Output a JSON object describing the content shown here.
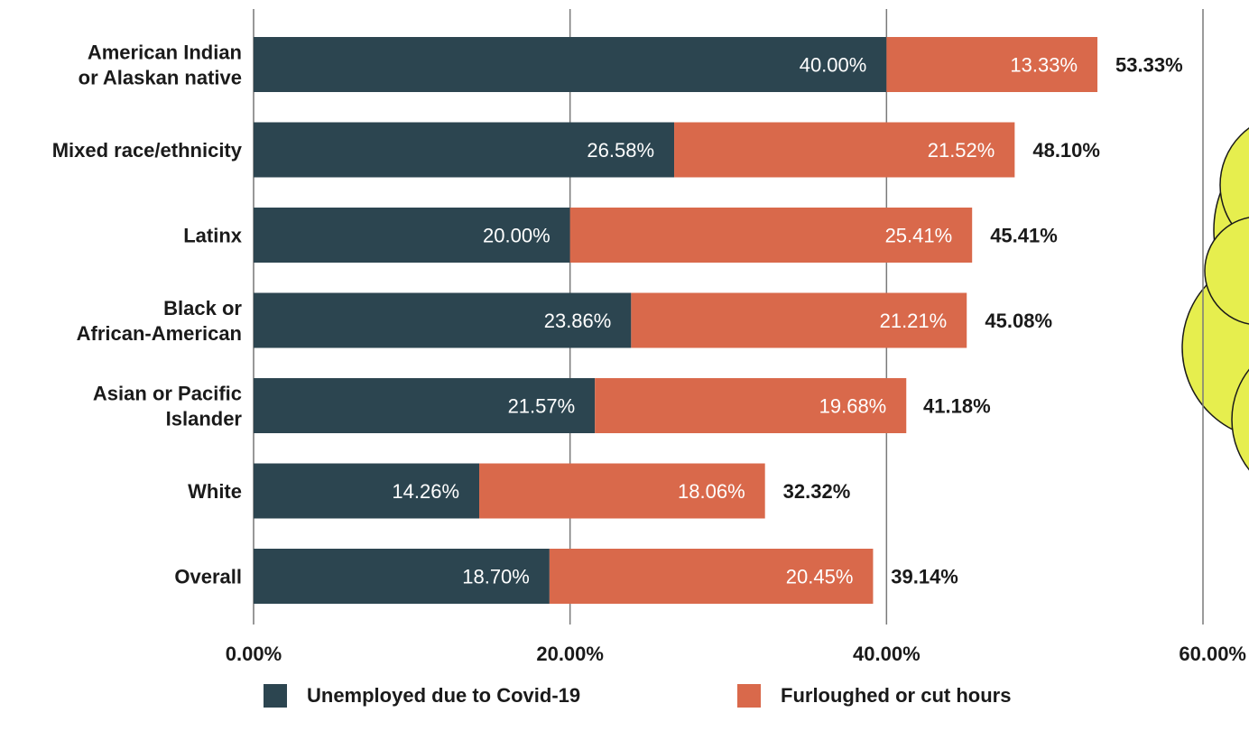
{
  "chart_data": {
    "type": "bar",
    "orientation": "horizontal",
    "stacked": true,
    "categories": [
      "American Indian or Alaskan native",
      "Mixed race/ethnicity",
      "Latinx",
      "Black or African-American",
      "Asian or Pacific Islander",
      "White",
      "Overall"
    ],
    "category_lines": [
      [
        "American Indian",
        "or Alaskan native"
      ],
      [
        "Mixed race/ethnicity"
      ],
      [
        "Latinx"
      ],
      [
        "Black or",
        "African-American"
      ],
      [
        "Asian or Pacific",
        "Islander"
      ],
      [
        "White"
      ],
      [
        "Overall"
      ]
    ],
    "series": [
      {
        "name": "Unemployed due to Covid-19",
        "color": "#2c4550",
        "values": [
          40.0,
          26.58,
          20.0,
          23.86,
          21.57,
          14.26,
          18.7
        ],
        "labels": [
          "40.00%",
          "26.58%",
          "20.00%",
          "23.86%",
          "21.57%",
          "14.26%",
          "18.70%"
        ]
      },
      {
        "name": "Furloughed or cut hours",
        "color": "#d9694b",
        "values": [
          13.33,
          21.52,
          25.41,
          21.21,
          19.68,
          18.06,
          20.45
        ],
        "labels": [
          "13.33%",
          "21.52%",
          "25.41%",
          "21.21%",
          "19.68%",
          "18.06%",
          "20.45%"
        ]
      }
    ],
    "totals": [
      53.33,
      48.1,
      45.41,
      45.08,
      41.18,
      32.32,
      39.14
    ],
    "total_labels": [
      "53.33%",
      "48.10%",
      "45.41%",
      "45.08%",
      "41.18%",
      "32.32%",
      "39.14%"
    ],
    "xlim": [
      0,
      60
    ],
    "xticks": [
      0,
      20,
      40,
      60
    ],
    "xtick_labels": [
      "0.00%",
      "20.00%",
      "40.00%",
      "60.00%"
    ],
    "grid": true,
    "legend_position": "bottom",
    "title": "",
    "xlabel": "",
    "ylabel": ""
  },
  "decoration": {
    "name": "cloud-shape",
    "fill": "#e6ee4e",
    "stroke": "#1a1a1a"
  }
}
